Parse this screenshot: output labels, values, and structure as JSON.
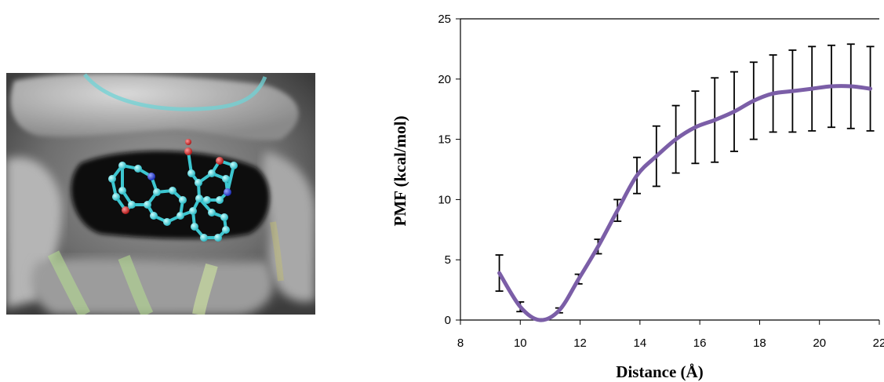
{
  "figure": {
    "left_panel": "protein-ligand binding pocket rendering"
  },
  "chart_data": {
    "type": "line",
    "title": "",
    "xlabel": "Distance (Å)",
    "ylabel": "PMF (kcal/mol)",
    "xlim": [
      8,
      22
    ],
    "ylim": [
      0,
      25
    ],
    "xticks": [
      8,
      10,
      12,
      14,
      16,
      18,
      20,
      22
    ],
    "yticks": [
      0,
      5,
      10,
      15,
      20,
      25
    ],
    "grid": false,
    "legend": "none",
    "series": [
      {
        "color": "#7b5ea7",
        "x": [
          9.3,
          10.0,
          10.65,
          11.3,
          11.95,
          12.6,
          13.25,
          13.9,
          14.55,
          15.2,
          15.85,
          16.5,
          17.15,
          17.8,
          18.45,
          19.1,
          19.75,
          20.4,
          21.05,
          21.7
        ],
        "y": [
          3.9,
          1.1,
          0.0,
          0.8,
          3.4,
          6.1,
          9.1,
          12.0,
          13.6,
          15.0,
          16.0,
          16.6,
          17.3,
          18.2,
          18.8,
          19.0,
          19.2,
          19.4,
          19.4,
          19.2
        ],
        "error": [
          1.5,
          0.4,
          0.1,
          0.2,
          0.4,
          0.6,
          0.9,
          1.5,
          2.5,
          2.8,
          3.0,
          3.5,
          3.3,
          3.2,
          3.2,
          3.4,
          3.5,
          3.4,
          3.5,
          3.5
        ]
      }
    ]
  }
}
